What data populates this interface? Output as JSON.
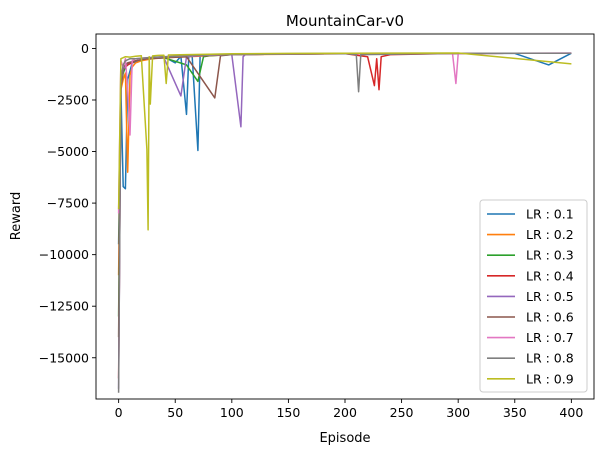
{
  "chart_data": {
    "type": "line",
    "title": "MountainCar-v0",
    "xlabel": "Episode",
    "ylabel": "Reward",
    "xlim": [
      -20,
      420
    ],
    "ylim": [
      -17000,
      700
    ],
    "xticks": [
      0,
      50,
      100,
      150,
      200,
      250,
      300,
      350,
      400
    ],
    "yticks": [
      0,
      -2500,
      -5000,
      -7500,
      -10000,
      -12500,
      -15000
    ],
    "ytick_labels": [
      "0",
      "−2500",
      "−5000",
      "−7500",
      "−10000",
      "−12500",
      "−15000"
    ],
    "grid": false,
    "legend_position": "lower-right",
    "series": [
      {
        "name": "LR : 0.1",
        "color": "#1f77b4",
        "x": [
          0,
          2,
          4,
          6,
          8,
          12,
          18,
          25,
          30,
          40,
          50,
          55,
          60,
          62,
          65,
          70,
          72,
          80,
          90,
          100,
          120,
          150,
          200,
          250,
          300,
          350,
          380,
          400
        ],
        "y": [
          -9500,
          -2000,
          -6700,
          -6800,
          -1500,
          -700,
          -600,
          -500,
          -450,
          -400,
          -700,
          -380,
          -3200,
          -350,
          -400,
          -4950,
          -350,
          -300,
          -320,
          -280,
          -270,
          -260,
          -250,
          -240,
          -230,
          -240,
          -800,
          -230
        ]
      },
      {
        "name": "LR : 0.2",
        "color": "#ff7f0e",
        "x": [
          0,
          2,
          4,
          6,
          8,
          10,
          12,
          15,
          20,
          30,
          40,
          60,
          80,
          100,
          150,
          200,
          300,
          400
        ],
        "y": [
          -11000,
          -2000,
          -1500,
          -1200,
          -6000,
          -1300,
          -900,
          -700,
          -600,
          -500,
          -450,
          -400,
          -350,
          -300,
          -280,
          -260,
          -240,
          -230
        ]
      },
      {
        "name": "LR : 0.3",
        "color": "#2ca02c",
        "x": [
          0,
          2,
          4,
          6,
          10,
          15,
          25,
          40,
          60,
          70,
          75,
          80,
          100,
          150,
          200,
          300,
          400
        ],
        "y": [
          -13000,
          -1800,
          -1200,
          -900,
          -700,
          -600,
          -500,
          -450,
          -800,
          -1600,
          -400,
          -350,
          -300,
          -270,
          -250,
          -240,
          -230
        ]
      },
      {
        "name": "LR : 0.4",
        "color": "#d62728",
        "x": [
          0,
          2,
          4,
          8,
          15,
          25,
          50,
          100,
          150,
          200,
          220,
          226,
          228,
          230,
          232,
          240,
          300,
          400
        ],
        "y": [
          -16000,
          -1800,
          -1000,
          -800,
          -600,
          -500,
          -400,
          -300,
          -270,
          -250,
          -400,
          -1800,
          -500,
          -2000,
          -400,
          -300,
          -240,
          -230
        ]
      },
      {
        "name": "LR : 0.5",
        "color": "#9467bd",
        "x": [
          0,
          2,
          4,
          8,
          15,
          25,
          40,
          55,
          60,
          70,
          90,
          100,
          108,
          110,
          112,
          120,
          150,
          200,
          300,
          400
        ],
        "y": [
          -16500,
          -1700,
          -1000,
          -700,
          -600,
          -500,
          -450,
          -2300,
          -400,
          -350,
          -300,
          -300,
          -3800,
          -400,
          -300,
          -280,
          -260,
          -250,
          -240,
          -230
        ]
      },
      {
        "name": "LR : 0.6",
        "color": "#8c564b",
        "x": [
          0,
          2,
          4,
          8,
          15,
          25,
          40,
          60,
          85,
          90,
          100,
          150,
          200,
          300,
          400
        ],
        "y": [
          -14000,
          -1600,
          -900,
          -700,
          -600,
          -500,
          -450,
          -400,
          -2400,
          -350,
          -300,
          -270,
          -250,
          -240,
          -230
        ]
      },
      {
        "name": "LR : 0.7",
        "color": "#e377c2",
        "x": [
          0,
          2,
          4,
          6,
          8,
          10,
          12,
          15,
          25,
          40,
          60,
          100,
          150,
          200,
          295,
          298,
          300,
          350,
          400
        ],
        "y": [
          -8000,
          -600,
          -900,
          -500,
          -2000,
          -4200,
          -600,
          -500,
          -450,
          -400,
          -350,
          -300,
          -270,
          -250,
          -240,
          -1700,
          -250,
          -230,
          -220
        ]
      },
      {
        "name": "LR : 0.8",
        "color": "#7f7f7f",
        "x": [
          0,
          2,
          4,
          6,
          10,
          15,
          25,
          40,
          60,
          80,
          100,
          150,
          200,
          210,
          212,
          214,
          300,
          400
        ],
        "y": [
          -16700,
          -1500,
          -800,
          -600,
          -500,
          -500,
          -450,
          -400,
          -350,
          -320,
          -300,
          -270,
          -250,
          -300,
          -2100,
          -300,
          -240,
          -230
        ]
      },
      {
        "name": "LR : 0.9",
        "color": "#bcbd22",
        "x": [
          0,
          2,
          4,
          6,
          10,
          15,
          20,
          25,
          26,
          27,
          28,
          30,
          35,
          40,
          42,
          44,
          60,
          80,
          100,
          150,
          200,
          300,
          400
        ],
        "y": [
          -7800,
          -500,
          -450,
          -400,
          -420,
          -380,
          -350,
          -4900,
          -8800,
          -400,
          -2700,
          -360,
          -340,
          -330,
          -1700,
          -320,
          -300,
          -280,
          -260,
          -240,
          -230,
          -220,
          -750
        ]
      }
    ]
  }
}
